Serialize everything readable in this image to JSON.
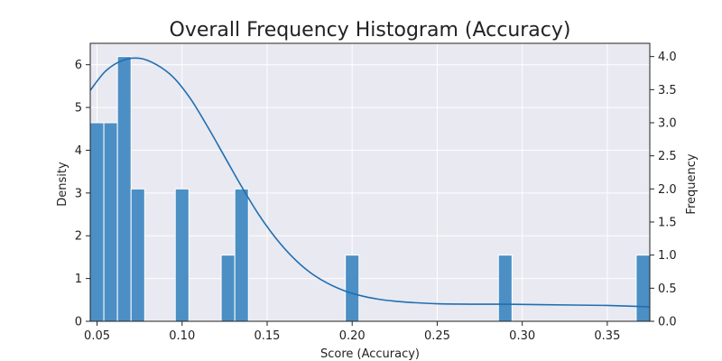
{
  "chart_data": {
    "type": "bar",
    "title": "Overall Frequency Histogram (Accuracy)",
    "xlabel": "Score (Accuracy)",
    "ylabel": "Density",
    "y2label": "Frequency",
    "xlim": [
      0.046,
      0.375
    ],
    "ylim": [
      0,
      6.5
    ],
    "y2lim": [
      0,
      4.2
    ],
    "x_ticks": [
      0.05,
      0.1,
      0.15,
      0.2,
      0.25,
      0.3,
      0.35
    ],
    "x_tick_labels": [
      "0.05",
      "0.10",
      "0.15",
      "0.20",
      "0.25",
      "0.30",
      "0.35"
    ],
    "y_ticks": [
      0,
      1,
      2,
      3,
      4,
      5,
      6
    ],
    "y_tick_labels": [
      "0",
      "1",
      "2",
      "3",
      "4",
      "5",
      "6"
    ],
    "y2_ticks": [
      0,
      0.5,
      1.0,
      1.5,
      2.0,
      2.5,
      3.0,
      3.5,
      4.0
    ],
    "y2_tick_labels": [
      "0.0",
      "0.5",
      "1.0",
      "1.5",
      "2.0",
      "2.5",
      "3.0",
      "3.5",
      "4.0"
    ],
    "bins": [
      {
        "x0": 0.046,
        "x1": 0.054,
        "frequency": 3
      },
      {
        "x0": 0.054,
        "x1": 0.062,
        "frequency": 3
      },
      {
        "x0": 0.062,
        "x1": 0.07,
        "frequency": 4
      },
      {
        "x0": 0.07,
        "x1": 0.078,
        "frequency": 2
      },
      {
        "x0": 0.096,
        "x1": 0.104,
        "frequency": 2
      },
      {
        "x0": 0.123,
        "x1": 0.131,
        "frequency": 1
      },
      {
        "x0": 0.131,
        "x1": 0.139,
        "frequency": 2
      },
      {
        "x0": 0.196,
        "x1": 0.204,
        "frequency": 1
      },
      {
        "x0": 0.286,
        "x1": 0.294,
        "frequency": 1
      },
      {
        "x0": 0.367,
        "x1": 0.375,
        "frequency": 1
      }
    ],
    "kde_density": {
      "x": [
        0.046,
        0.055,
        0.065,
        0.075,
        0.085,
        0.095,
        0.105,
        0.115,
        0.125,
        0.135,
        0.145,
        0.155,
        0.165,
        0.175,
        0.185,
        0.195,
        0.205,
        0.215,
        0.225,
        0.235,
        0.25,
        0.27,
        0.29,
        0.31,
        0.33,
        0.35,
        0.375
      ],
      "y": [
        5.4,
        5.85,
        6.1,
        6.15,
        6.0,
        5.7,
        5.2,
        4.55,
        3.85,
        3.15,
        2.5,
        1.95,
        1.5,
        1.15,
        0.9,
        0.72,
        0.6,
        0.52,
        0.47,
        0.44,
        0.41,
        0.4,
        0.4,
        0.39,
        0.38,
        0.37,
        0.34
      ]
    },
    "grid": true,
    "colors": {
      "bar": "#4c8fc4",
      "bar_edge": "#ffffff",
      "kde": "#1f6fb2",
      "plot_bg": "#e9e9f1",
      "grid": "#ffffff",
      "axis": "#222222"
    }
  }
}
